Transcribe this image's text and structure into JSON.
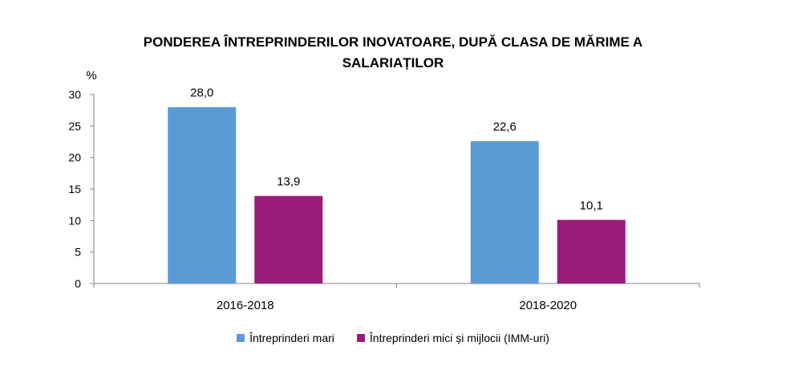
{
  "chart_data": {
    "type": "bar",
    "title_lines": [
      "PONDEREA ÎNTREPRINDERILOR INOVATOARE, DUPĂ CLASA DE MĂRIME A",
      "SALARIAȚILOR"
    ],
    "ylabel": "%",
    "xlabel": "",
    "ylim": [
      0,
      30
    ],
    "yticks": [
      "0",
      "5",
      "10",
      "15",
      "20",
      "25",
      "30"
    ],
    "grid": false,
    "legend_position": "bottom",
    "categories": [
      "2016-2018",
      "2018-2020"
    ],
    "series": [
      {
        "name": "Întreprinderi mari",
        "color": "#5b9bd5",
        "values": [
          28.0,
          22.6
        ],
        "labels": [
          "28,0",
          "22,6"
        ]
      },
      {
        "name": "Întreprinderi mici și mijlocii (IMM-uri)",
        "color": "#9b1b7a",
        "values": [
          13.9,
          10.1
        ],
        "labels": [
          "13,9",
          "10,1"
        ]
      }
    ]
  }
}
